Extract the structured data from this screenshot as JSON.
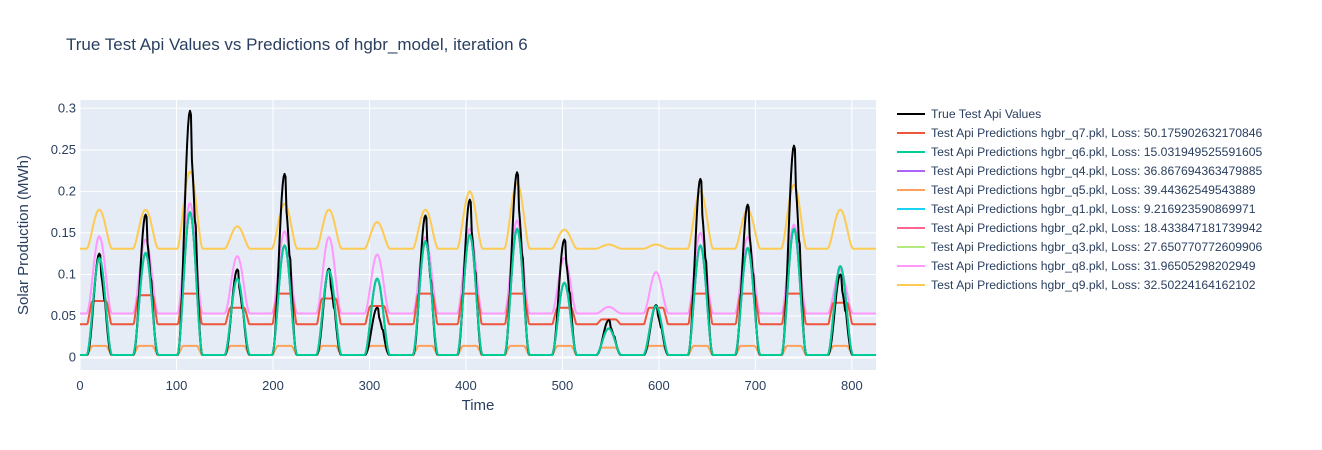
{
  "chart_data": {
    "type": "line",
    "title": "True Test Api Values vs Predictions of hgbr_model, iteration 6",
    "xlabel": "Time",
    "ylabel": "Solar Production (MWh)",
    "xlim": [
      0,
      825
    ],
    "ylim": [
      -0.015,
      0.31
    ],
    "xticks": [
      0,
      100,
      200,
      300,
      400,
      500,
      600,
      700,
      800
    ],
    "yticks": [
      0,
      0.05,
      0.1,
      0.15,
      0.2,
      0.25,
      0.3
    ],
    "ytick_labels": [
      "0",
      "0.05",
      "0.1",
      "0.15",
      "0.2",
      "0.25",
      "0.3"
    ],
    "grid": true,
    "legend_position": "right",
    "background": "#e5ecf6",
    "series": [
      {
        "name": "True Test Api Values",
        "color": "#000000",
        "width": 2
      },
      {
        "name": "Test Api Predictions hgbr_q7.pkl, Loss: 50.175902632170846",
        "color": "#EF553B",
        "width": 2
      },
      {
        "name": "Test Api Predictions hgbr_q6.pkl, Loss: 15.031949525591605",
        "color": "#00CC96",
        "width": 2
      },
      {
        "name": "Test Api Predictions hgbr_q4.pkl, Loss: 36.867694363479885",
        "color": "#AB63FA",
        "width": 2
      },
      {
        "name": "Test Api Predictions hgbr_q5.pkl, Loss: 39.44362549543889",
        "color": "#FFA15A",
        "width": 2
      },
      {
        "name": "Test Api Predictions hgbr_q1.pkl, Loss: 9.216923590869971",
        "color": "#19D3F3",
        "width": 2
      },
      {
        "name": "Test Api Predictions hgbr_q2.pkl, Loss: 18.433847181739942",
        "color": "#FF6692",
        "width": 2
      },
      {
        "name": "Test Api Predictions hgbr_q3.pkl, Loss: 27.650770772609906",
        "color": "#B6E880",
        "width": 2
      },
      {
        "name": "Test Api Predictions hgbr_q8.pkl, Loss: 31.96505298202949",
        "color": "#FF97FF",
        "width": 2
      },
      {
        "name": "Test Api Predictions hgbr_q9.pkl, Loss: 32.50224164162102",
        "color": "#FECB52",
        "width": 2
      }
    ],
    "days": [
      {
        "center": 20,
        "true": 0.125,
        "q1": 0.12,
        "q2": 0.12,
        "q3": 0.12,
        "q4": 0.12,
        "q5": 0.014,
        "q6": 0.12,
        "q7": 0.068,
        "q8": 0.146,
        "q9": 0.178
      },
      {
        "center": 68,
        "true": 0.172,
        "q1": 0.126,
        "q2": 0.126,
        "q3": 0.126,
        "q4": 0.126,
        "q5": 0.014,
        "q6": 0.126,
        "q7": 0.075,
        "q8": 0.142,
        "q9": 0.178
      },
      {
        "center": 114,
        "true": 0.297,
        "q1": 0.175,
        "q2": 0.175,
        "q3": 0.175,
        "q4": 0.175,
        "q5": 0.014,
        "q6": 0.175,
        "q7": 0.077,
        "q8": 0.186,
        "q9": 0.224
      },
      {
        "center": 163,
        "true": 0.106,
        "q1": 0.095,
        "q2": 0.095,
        "q3": 0.095,
        "q4": 0.095,
        "q5": 0.014,
        "q6": 0.095,
        "q7": 0.06,
        "q8": 0.122,
        "q9": 0.158
      },
      {
        "center": 212,
        "true": 0.221,
        "q1": 0.135,
        "q2": 0.135,
        "q3": 0.135,
        "q4": 0.135,
        "q5": 0.014,
        "q6": 0.135,
        "q7": 0.077,
        "q8": 0.152,
        "q9": 0.185
      },
      {
        "center": 258,
        "true": 0.107,
        "q1": 0.105,
        "q2": 0.105,
        "q3": 0.105,
        "q4": 0.105,
        "q5": 0.014,
        "q6": 0.105,
        "q7": 0.071,
        "q8": 0.145,
        "q9": 0.178
      },
      {
        "center": 308,
        "true": 0.06,
        "q1": 0.095,
        "q2": 0.095,
        "q3": 0.095,
        "q4": 0.095,
        "q5": 0.014,
        "q6": 0.095,
        "q7": 0.062,
        "q8": 0.124,
        "q9": 0.163
      },
      {
        "center": 358,
        "true": 0.171,
        "q1": 0.14,
        "q2": 0.14,
        "q3": 0.14,
        "q4": 0.14,
        "q5": 0.014,
        "q6": 0.14,
        "q7": 0.077,
        "q8": 0.145,
        "q9": 0.178
      },
      {
        "center": 404,
        "true": 0.19,
        "q1": 0.148,
        "q2": 0.148,
        "q3": 0.148,
        "q4": 0.148,
        "q5": 0.014,
        "q6": 0.148,
        "q7": 0.077,
        "q8": 0.155,
        "q9": 0.2
      },
      {
        "center": 453,
        "true": 0.223,
        "q1": 0.155,
        "q2": 0.155,
        "q3": 0.155,
        "q4": 0.155,
        "q5": 0.014,
        "q6": 0.155,
        "q7": 0.077,
        "q8": 0.165,
        "q9": 0.21
      },
      {
        "center": 502,
        "true": 0.142,
        "q1": 0.09,
        "q2": 0.09,
        "q3": 0.09,
        "q4": 0.09,
        "q5": 0.014,
        "q6": 0.09,
        "q7": 0.06,
        "q8": 0.12,
        "q9": 0.154
      },
      {
        "center": 548,
        "true": 0.045,
        "q1": 0.035,
        "q2": 0.035,
        "q3": 0.035,
        "q4": 0.035,
        "q5": 0.012,
        "q6": 0.035,
        "q7": 0.046,
        "q8": 0.061,
        "q9": 0.136
      },
      {
        "center": 597,
        "true": 0.063,
        "q1": 0.062,
        "q2": 0.062,
        "q3": 0.062,
        "q4": 0.062,
        "q5": 0.014,
        "q6": 0.062,
        "q7": 0.06,
        "q8": 0.103,
        "q9": 0.136
      },
      {
        "center": 643,
        "true": 0.215,
        "q1": 0.135,
        "q2": 0.135,
        "q3": 0.135,
        "q4": 0.135,
        "q5": 0.014,
        "q6": 0.135,
        "q7": 0.077,
        "q8": 0.15,
        "q9": 0.2
      },
      {
        "center": 692,
        "true": 0.184,
        "q1": 0.132,
        "q2": 0.132,
        "q3": 0.132,
        "q4": 0.132,
        "q5": 0.014,
        "q6": 0.132,
        "q7": 0.077,
        "q8": 0.145,
        "q9": 0.178
      },
      {
        "center": 740,
        "true": 0.255,
        "q1": 0.155,
        "q2": 0.155,
        "q3": 0.155,
        "q4": 0.155,
        "q5": 0.014,
        "q6": 0.155,
        "q7": 0.077,
        "q8": 0.16,
        "q9": 0.208
      },
      {
        "center": 788,
        "true": 0.1,
        "q1": 0.11,
        "q2": 0.11,
        "q3": 0.11,
        "q4": 0.11,
        "q5": 0.014,
        "q6": 0.11,
        "q7": 0.066,
        "q8": 0.105,
        "q9": 0.178
      }
    ],
    "baselines": {
      "true": 0.003,
      "q1": 0.003,
      "q2": 0.003,
      "q3": 0.003,
      "q4": 0.003,
      "q5": 0.003,
      "q6": 0.003,
      "q7": 0.04,
      "q8": 0.053,
      "q9": 0.131
    }
  }
}
